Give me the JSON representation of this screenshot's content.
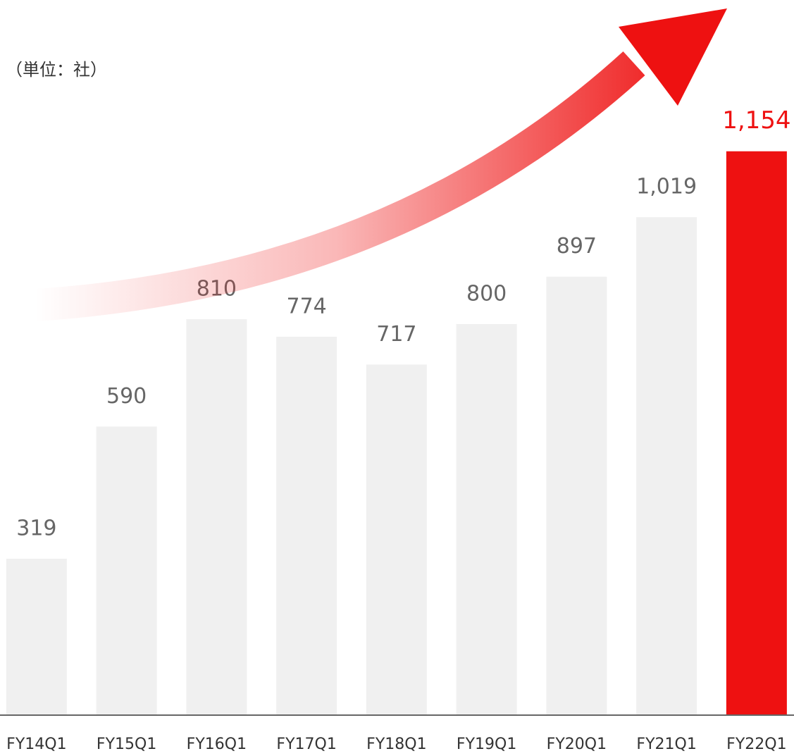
{
  "chart_data": {
    "type": "bar",
    "subtitle": "（単位：社）",
    "categories": [
      "FY14Q1",
      "FY15Q1",
      "FY16Q1",
      "FY17Q1",
      "FY18Q1",
      "FY19Q1",
      "FY20Q1",
      "FY21Q1",
      "FY22Q1"
    ],
    "values": [
      319,
      590,
      810,
      774,
      717,
      800,
      897,
      1019,
      1154
    ],
    "value_labels": [
      "319",
      "590",
      "810",
      "774",
      "717",
      "800",
      "897",
      "1,019",
      "1,154"
    ],
    "colors": [
      "#f0f0f0",
      "#f0f0f0",
      "#f0f0f0",
      "#f0f0f0",
      "#f0f0f0",
      "#f0f0f0",
      "#f0f0f0",
      "#f0f0f0",
      "#ee1111"
    ],
    "value_label_colors": [
      "#666666",
      "#666666",
      "#666666",
      "#666666",
      "#666666",
      "#666666",
      "#666666",
      "#666666",
      "#ee1111"
    ],
    "ylim": [
      0,
      1464
    ]
  }
}
